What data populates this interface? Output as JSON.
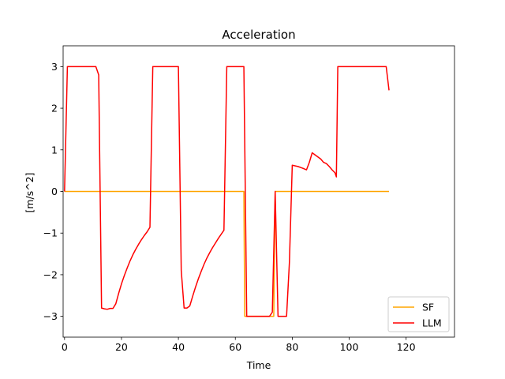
{
  "chart_data": {
    "type": "line",
    "title": "Acceleration",
    "xlabel": "Time",
    "ylabel": "[m/s^2]",
    "xlim": [
      -0.5,
      137
    ],
    "ylim": [
      -3.5,
      3.5
    ],
    "xticks": [
      0,
      20,
      40,
      60,
      80,
      100,
      120
    ],
    "yticks": [
      -3,
      -2,
      -1,
      0,
      1,
      2,
      3
    ],
    "grid": false,
    "legend_position": "bottom-right",
    "series": [
      {
        "name": "SF",
        "color": "#ffa500",
        "points": [
          [
            0,
            0
          ],
          [
            63,
            0
          ],
          [
            63.3,
            -3
          ],
          [
            73.5,
            -3
          ],
          [
            74,
            0
          ],
          [
            114,
            0
          ]
        ]
      },
      {
        "name": "LLM",
        "color": "#ff0000",
        "points": [
          [
            0,
            0
          ],
          [
            1,
            3
          ],
          [
            11,
            3
          ],
          [
            12,
            2.8
          ],
          [
            13,
            -2.8
          ],
          [
            14,
            -2.82
          ],
          [
            15,
            -2.83
          ],
          [
            16,
            -2.81
          ],
          [
            17,
            -2.81
          ],
          [
            18,
            -2.7
          ],
          [
            19,
            -2.45
          ],
          [
            20,
            -2.22
          ],
          [
            21,
            -2.02
          ],
          [
            22,
            -1.84
          ],
          [
            23,
            -1.67
          ],
          [
            24,
            -1.52
          ],
          [
            25,
            -1.39
          ],
          [
            26,
            -1.27
          ],
          [
            27,
            -1.16
          ],
          [
            28,
            -1.06
          ],
          [
            29,
            -0.97
          ],
          [
            30,
            -0.86
          ],
          [
            31,
            3
          ],
          [
            40,
            3
          ],
          [
            41,
            -1.9
          ],
          [
            42,
            -2.8
          ],
          [
            43,
            -2.8
          ],
          [
            44,
            -2.75
          ],
          [
            45,
            -2.52
          ],
          [
            46,
            -2.3
          ],
          [
            47,
            -2.1
          ],
          [
            48,
            -1.92
          ],
          [
            49,
            -1.75
          ],
          [
            50,
            -1.6
          ],
          [
            51,
            -1.47
          ],
          [
            52,
            -1.35
          ],
          [
            53,
            -1.24
          ],
          [
            54,
            -1.13
          ],
          [
            55,
            -1.03
          ],
          [
            56,
            -0.93
          ],
          [
            57,
            3
          ],
          [
            63,
            3
          ],
          [
            64,
            -3
          ],
          [
            72,
            -3
          ],
          [
            73,
            -2.9
          ],
          [
            74,
            0
          ],
          [
            75,
            -3
          ],
          [
            78,
            -3
          ],
          [
            79,
            -1.7
          ],
          [
            80,
            0.63
          ],
          [
            82,
            0.6
          ],
          [
            84,
            0.55
          ],
          [
            85,
            0.52
          ],
          [
            86,
            0.7
          ],
          [
            87,
            0.93
          ],
          [
            88,
            0.88
          ],
          [
            89,
            0.83
          ],
          [
            90,
            0.78
          ],
          [
            91,
            0.7
          ],
          [
            92,
            0.67
          ],
          [
            93,
            0.6
          ],
          [
            94,
            0.52
          ],
          [
            95,
            0.45
          ],
          [
            95.5,
            0.35
          ],
          [
            96,
            3
          ],
          [
            113,
            3
          ],
          [
            114,
            2.43
          ]
        ]
      }
    ]
  }
}
